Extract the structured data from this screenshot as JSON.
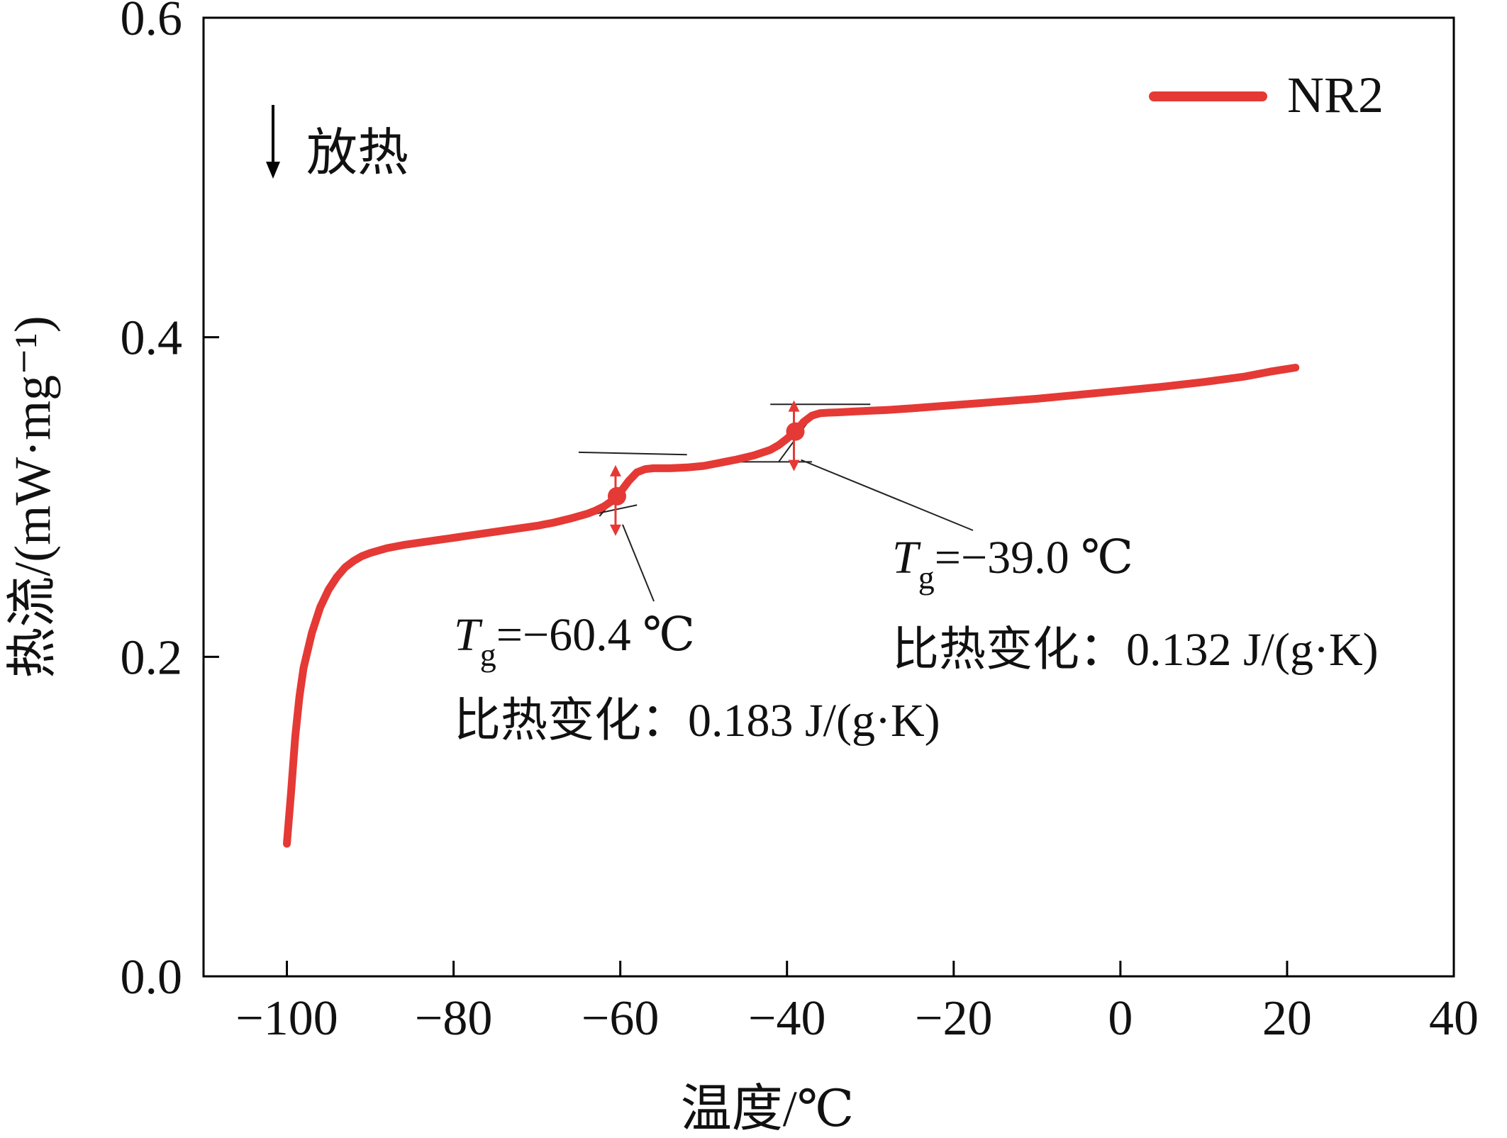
{
  "chart_data": {
    "type": "line",
    "title": "",
    "xlabel": "温度/℃",
    "ylabel": "热流/(mW·mg⁻¹)",
    "xlim": [
      -110,
      40
    ],
    "ylim": [
      0.0,
      0.6
    ],
    "xticks": [
      -100,
      -80,
      -60,
      -40,
      -20,
      0,
      20,
      40
    ],
    "yticks": [
      0.0,
      0.2,
      0.4,
      0.6
    ],
    "xtick_labels": [
      "−100",
      "−80",
      "−60",
      "−40",
      "−20",
      "0",
      "20",
      "40"
    ],
    "ytick_labels": [
      "0.0",
      "0.2",
      "0.4",
      "0.6"
    ],
    "grid": false,
    "legend": {
      "position": "top-right"
    },
    "series": [
      {
        "name": "NR2",
        "color": "#e53935",
        "x": [
          -100,
          -99.5,
          -99,
          -98.5,
          -98,
          -97,
          -96,
          -95,
          -94,
          -93,
          -92,
          -91,
          -90,
          -89,
          -88,
          -86,
          -84,
          -82,
          -80,
          -78,
          -76,
          -74,
          -72,
          -70,
          -68,
          -66,
          -64,
          -63,
          -62,
          -61,
          -60.4,
          -60,
          -59,
          -58,
          -57,
          -56,
          -54,
          -52,
          -50,
          -48,
          -46,
          -44,
          -42,
          -41,
          -40,
          -39,
          -38,
          -37,
          -36,
          -35,
          -34,
          -32,
          -30,
          -28,
          -25,
          -20,
          -15,
          -10,
          -5,
          0,
          5,
          10,
          15,
          18,
          21
        ],
        "values": [
          0.083,
          0.115,
          0.15,
          0.175,
          0.193,
          0.215,
          0.231,
          0.242,
          0.25,
          0.256,
          0.26,
          0.263,
          0.265,
          0.2665,
          0.268,
          0.27,
          0.2715,
          0.273,
          0.2745,
          0.276,
          0.2775,
          0.279,
          0.2805,
          0.282,
          0.284,
          0.2865,
          0.2895,
          0.2915,
          0.294,
          0.2975,
          0.3005,
          0.303,
          0.31,
          0.3155,
          0.3175,
          0.318,
          0.318,
          0.3185,
          0.3195,
          0.3215,
          0.3235,
          0.326,
          0.3295,
          0.3325,
          0.3365,
          0.341,
          0.347,
          0.351,
          0.3525,
          0.3528,
          0.353,
          0.3535,
          0.354,
          0.3545,
          0.3555,
          0.3575,
          0.3595,
          0.3615,
          0.364,
          0.3665,
          0.369,
          0.372,
          0.3755,
          0.3785,
          0.381
        ]
      }
    ],
    "annotations": [
      {
        "text_T": "T",
        "text_sub": "g",
        "text_value": "=−60.4 ℃",
        "text_line2": "比热变化：0.183 J/(g·K)",
        "x": -60.4,
        "y": 0.3005,
        "color": "#e53935"
      },
      {
        "text_T": "T",
        "text_sub": "g",
        "text_value": "=−39.0 ℃",
        "text_line2": "比热变化：0.132 J/(g·K)",
        "x": -39.0,
        "y": 0.341,
        "color": "#e53935"
      }
    ],
    "arrow_note": "放热"
  }
}
